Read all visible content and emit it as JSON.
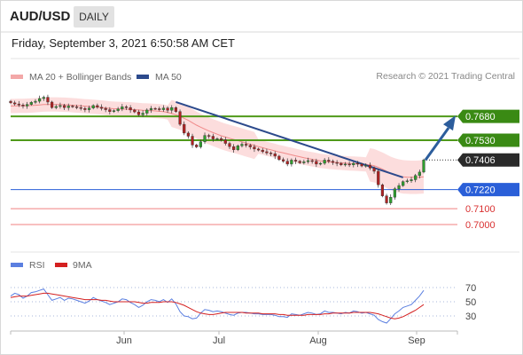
{
  "header": {
    "symbol": "AUD/USD",
    "period": "DAILY",
    "timestamp": "Friday, September 3, 2021 6:50:58 AM CET",
    "credit": "Research © 2021 Trading Central"
  },
  "legend": {
    "ma20_label": "MA 20 + Bollinger Bands",
    "ma50_label": "MA 50",
    "rsi_label": "RSI",
    "rsi_ma_label": "9MA"
  },
  "colors": {
    "candle_up": "#2e9e2e",
    "candle_down": "#b02222",
    "bollinger_band": "#fbd4d4",
    "ma20": "#f08a8a",
    "ma50": "#2c4a8c",
    "target_line": "#4f9a1a",
    "pivot_line": "#2a5fd8",
    "support_line": "#f08080",
    "rsi": "#5b7fe0",
    "rsi_ma": "#d42020",
    "arrow": "#2c5d9c"
  },
  "chart_data": [
    {
      "type": "candlestick",
      "title": "AUD/USD",
      "subtitle": "DAILY",
      "x_ticks": [
        "Jun",
        "Jul",
        "Aug",
        "Sep"
      ],
      "ylim": [
        0.695,
        0.782
      ],
      "grid": false,
      "legend_position": "top-left",
      "levels": [
        {
          "value": 0.768,
          "label": "0.7680",
          "kind": "target"
        },
        {
          "value": 0.753,
          "label": "0.7530",
          "kind": "target"
        },
        {
          "value": 0.7406,
          "label": "0.7406",
          "kind": "current"
        },
        {
          "value": 0.722,
          "label": "0.7220",
          "kind": "pivot"
        },
        {
          "value": 0.71,
          "label": "0.7100",
          "kind": "support"
        },
        {
          "value": 0.7,
          "label": "0.7000",
          "kind": "support"
        }
      ],
      "closes": [
        0.7765,
        0.7758,
        0.7752,
        0.7745,
        0.7755,
        0.7768,
        0.7775,
        0.7792,
        0.78,
        0.777,
        0.7735,
        0.7742,
        0.7748,
        0.7735,
        0.7745,
        0.774,
        0.7735,
        0.773,
        0.7722,
        0.7732,
        0.7748,
        0.7738,
        0.773,
        0.7722,
        0.771,
        0.7716,
        0.7726,
        0.774,
        0.7735,
        0.772,
        0.7708,
        0.769,
        0.77,
        0.772,
        0.773,
        0.7728,
        0.7722,
        0.7732,
        0.7718,
        0.7735,
        0.771,
        0.763,
        0.7575,
        0.7555,
        0.75,
        0.7488,
        0.752,
        0.756,
        0.7555,
        0.7538,
        0.754,
        0.7532,
        0.751,
        0.749,
        0.747,
        0.7495,
        0.7505,
        0.7498,
        0.7488,
        0.7475,
        0.7468,
        0.7458,
        0.745,
        0.7445,
        0.743,
        0.7408,
        0.7398,
        0.738,
        0.7405,
        0.7398,
        0.7388,
        0.7395,
        0.7402,
        0.7398,
        0.738,
        0.7385,
        0.7405,
        0.7398,
        0.739,
        0.7385,
        0.7375,
        0.738,
        0.7375,
        0.7385,
        0.738,
        0.7368,
        0.7372,
        0.7355,
        0.7335,
        0.725,
        0.718,
        0.7136,
        0.7172,
        0.7225,
        0.7245,
        0.727,
        0.7275,
        0.7282,
        0.7308,
        0.733,
        0.7406
      ],
      "ma20": [
        0.7745,
        0.7745,
        0.7746,
        0.7746,
        0.7747,
        0.7748,
        0.775,
        0.7752,
        0.7754,
        0.7755,
        0.7755,
        0.7755,
        0.7754,
        0.7753,
        0.7752,
        0.775,
        0.7748,
        0.7746,
        0.7744,
        0.7742,
        0.774,
        0.7738,
        0.7736,
        0.7733,
        0.773,
        0.7728,
        0.7727,
        0.7726,
        0.7725,
        0.7724,
        0.7722,
        0.772,
        0.7718,
        0.7717,
        0.7716,
        0.7714,
        0.7712,
        0.771,
        0.7705,
        0.7698,
        0.769,
        0.768,
        0.7668,
        0.7655,
        0.764,
        0.7625,
        0.7612,
        0.76,
        0.7588,
        0.7578,
        0.7568,
        0.7558,
        0.755,
        0.7542,
        0.7535,
        0.7528,
        0.752,
        0.7512,
        0.7505,
        0.7497,
        0.749,
        0.7483,
        0.7476,
        0.747,
        0.7463,
        0.7456,
        0.745,
        0.7444,
        0.7438,
        0.7432,
        0.7426,
        0.742,
        0.7415,
        0.741,
        0.7405,
        0.74,
        0.7397,
        0.7394,
        0.7392,
        0.739,
        0.7388,
        0.7386,
        0.7384,
        0.7383,
        0.7382,
        0.738,
        0.7378,
        0.7375,
        0.737,
        0.736,
        0.7348,
        0.7335,
        0.7322,
        0.7312,
        0.7305,
        0.73,
        0.7298,
        0.7297,
        0.7297,
        0.7298,
        0.73
      ],
      "ma50_start": {
        "index": 40,
        "value": 0.777
      },
      "ma50_end": {
        "index": 95,
        "value": 0.7296
      }
    },
    {
      "type": "line",
      "title": "RSI",
      "y_ticks": [
        30,
        50,
        70
      ],
      "ylim": [
        10,
        85
      ],
      "series": [
        {
          "name": "RSI",
          "values": [
            58,
            62,
            60,
            55,
            58,
            63,
            64,
            66,
            68,
            60,
            52,
            54,
            56,
            52,
            55,
            54,
            52,
            50,
            48,
            51,
            56,
            53,
            51,
            49,
            46,
            48,
            50,
            54,
            53,
            49,
            46,
            42,
            45,
            50,
            53,
            52,
            50,
            53,
            49,
            54,
            47,
            36,
            30,
            29,
            26,
            27,
            34,
            39,
            38,
            36,
            37,
            36,
            34,
            32,
            31,
            34,
            35,
            35,
            34,
            33,
            33,
            32,
            32,
            32,
            31,
            29,
            29,
            28,
            33,
            32,
            31,
            33,
            35,
            34,
            32,
            33,
            37,
            35,
            35,
            34,
            33,
            35,
            34,
            37,
            36,
            34,
            35,
            33,
            31,
            25,
            22,
            20,
            26,
            33,
            37,
            42,
            44,
            46,
            52,
            58,
            66
          ]
        },
        {
          "name": "9MA",
          "values": [
            56,
            57,
            58,
            58,
            58,
            59,
            60,
            61,
            62,
            62,
            61,
            60,
            59,
            58,
            57,
            56,
            55,
            54,
            53,
            53,
            53,
            53,
            52,
            52,
            51,
            50,
            50,
            50,
            50,
            50,
            50,
            49,
            48,
            48,
            49,
            49,
            49,
            50,
            50,
            50,
            49,
            47,
            45,
            42,
            39,
            36,
            34,
            33,
            32,
            32,
            33,
            34,
            35,
            35,
            35,
            35,
            35,
            34,
            34,
            34,
            34,
            33,
            33,
            33,
            33,
            32,
            32,
            31,
            31,
            31,
            31,
            31,
            32,
            32,
            32,
            32,
            33,
            33,
            34,
            34,
            34,
            34,
            34,
            35,
            35,
            35,
            35,
            35,
            34,
            33,
            31,
            29,
            27,
            26,
            27,
            29,
            32,
            35,
            38,
            42,
            46
          ]
        }
      ]
    }
  ]
}
